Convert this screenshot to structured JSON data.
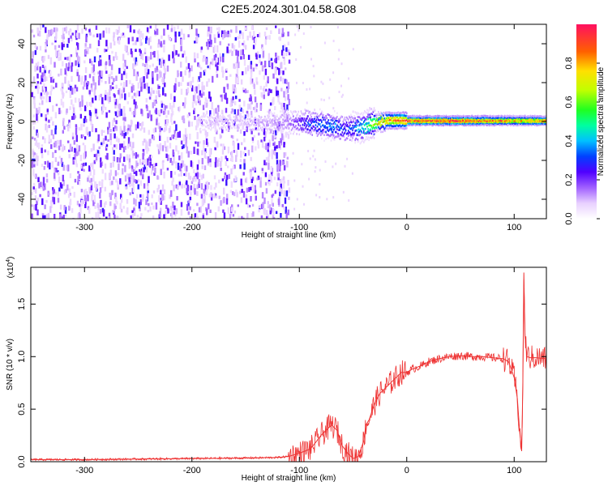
{
  "figure": {
    "title": "C2E5.2024.301.04.58.G08"
  },
  "chart_data": [
    {
      "type": "heatmap",
      "title": "C2E5.2024.301.04.58.G08",
      "xlabel": "Height of straight line (km)",
      "ylabel": "Frequency (Hz)",
      "xlim": [
        -350,
        130
      ],
      "ylim": [
        -50,
        50
      ],
      "x_ticks": [
        -300,
        -200,
        -100,
        0,
        100
      ],
      "y_ticks": [
        -40,
        -20,
        0,
        20,
        40
      ],
      "colorbar": {
        "label": "Normalized spectral amplitude",
        "range": [
          0.0,
          1.0
        ],
        "ticks": [
          "0.0",
          "0.2",
          "0.4",
          "0.6",
          "0.8"
        ],
        "tick_values": [
          0.0,
          0.2,
          0.4,
          0.6,
          0.8
        ]
      },
      "ridge": {
        "x": [
          -195,
          -170,
          -150,
          -130,
          -110,
          -95,
          -80,
          -70,
          -60,
          -50,
          -40,
          -30,
          -20,
          -10,
          0,
          20,
          40,
          60,
          80,
          95,
          105,
          115,
          130
        ],
        "frequency": [
          0,
          0,
          0,
          0,
          0,
          0,
          -1,
          -2,
          -3,
          -3,
          -2,
          0,
          1,
          1,
          1,
          1,
          1,
          1,
          1,
          1,
          1,
          1,
          1
        ],
        "amplitude": [
          0.08,
          0.1,
          0.1,
          0.12,
          0.15,
          0.3,
          0.35,
          0.4,
          0.3,
          0.35,
          0.5,
          0.7,
          0.85,
          0.9,
          0.95,
          0.95,
          0.95,
          0.95,
          0.9,
          0.85,
          0.8,
          0.85,
          0.9
        ]
      },
      "noise_region_x": [
        -350,
        -110
      ]
    },
    {
      "type": "line",
      "xlabel": "Height of straight line (km)",
      "ylabel": "SNR (10 * v/v)",
      "y_multiplier": "(x10",
      "y_multiplier_exp": "4",
      "y_multiplier_close": ")",
      "xlim": [
        -350,
        130
      ],
      "ylim": [
        0,
        1.85
      ],
      "x_ticks": [
        -300,
        -200,
        -100,
        0,
        100
      ],
      "y_ticks": [
        "0.0",
        "0.5",
        "1.0",
        "1.5"
      ],
      "y_tick_values": [
        0.0,
        0.5,
        1.0,
        1.5
      ],
      "series": [
        {
          "color": "#ee3333",
          "x": [
            -350,
            -300,
            -250,
            -200,
            -150,
            -120,
            -110,
            -100,
            -90,
            -85,
            -80,
            -75,
            -70,
            -65,
            -60,
            -55,
            -50,
            -45,
            -40,
            -38,
            -35,
            -30,
            -25,
            -20,
            -15,
            -10,
            -5,
            0,
            5,
            10,
            15,
            20,
            30,
            40,
            50,
            60,
            70,
            80,
            90,
            95,
            100,
            103,
            105,
            107,
            108,
            109,
            110,
            112,
            115,
            120,
            130
          ],
          "y": [
            0.02,
            0.02,
            0.025,
            0.03,
            0.035,
            0.04,
            0.05,
            0.08,
            0.12,
            0.18,
            0.25,
            0.3,
            0.35,
            0.3,
            0.15,
            0.08,
            0.03,
            0.05,
            0.2,
            0.35,
            0.4,
            0.55,
            0.65,
            0.7,
            0.75,
            0.8,
            0.85,
            0.85,
            0.88,
            0.9,
            0.92,
            0.95,
            0.98,
            1.0,
            1.01,
            1.0,
            1.0,
            0.99,
            0.98,
            0.95,
            0.8,
            0.6,
            0.3,
            0.1,
            0.7,
            1.8,
            1.2,
            1.0,
            0.99,
            0.99,
            0.98
          ]
        }
      ]
    }
  ]
}
